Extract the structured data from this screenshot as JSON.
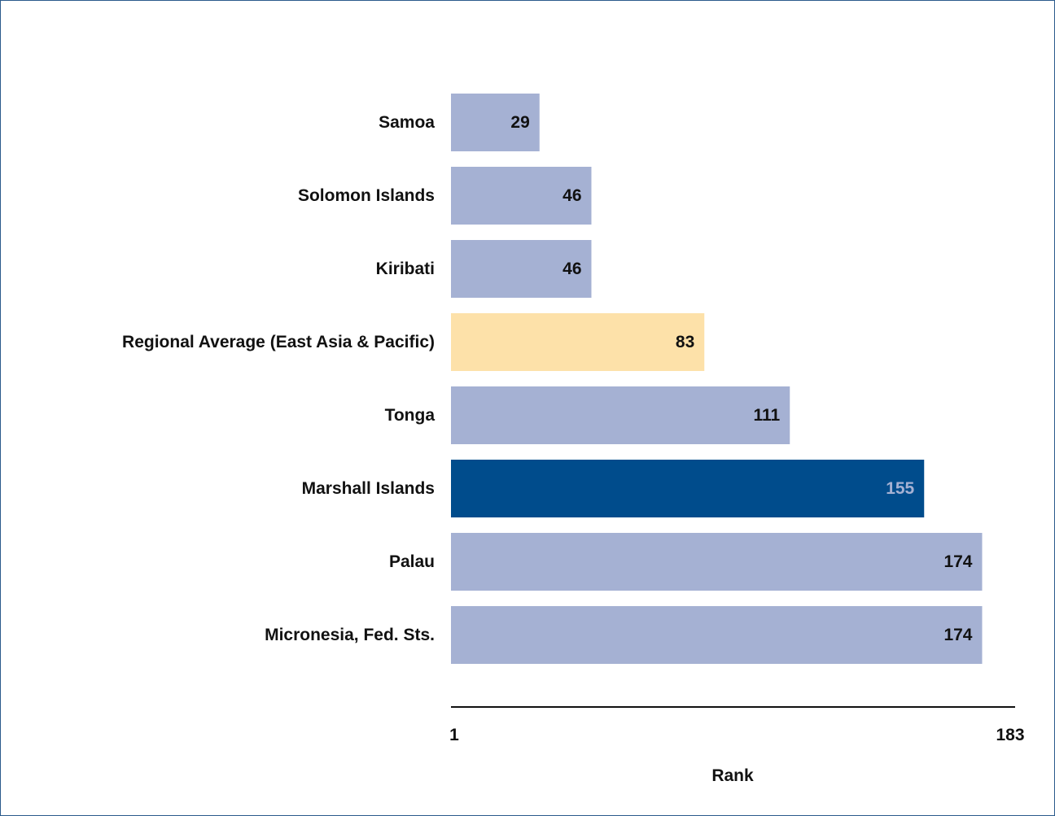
{
  "chart_data": {
    "type": "bar",
    "orientation": "horizontal",
    "categories": [
      "Samoa",
      "Solomon Islands",
      "Kiribati",
      "Regional Average (East Asia & Pacific)",
      "Tonga",
      "Marshall Islands",
      "Palau",
      "Micronesia, Fed. Sts."
    ],
    "values": [
      29,
      46,
      46,
      83,
      111,
      155,
      174,
      174
    ],
    "highlight": {
      "Regional Average (East Asia & Pacific)": "regional",
      "Marshall Islands": "focus"
    },
    "xlabel": "Rank",
    "xlim": [
      1,
      183
    ],
    "x_ticks": [
      "1",
      "183"
    ],
    "colors": {
      "default_bar": "#a5b1d3",
      "regional_bar": "#fde1a9",
      "focus_bar": "#004c8c",
      "default_label": "#111111",
      "focus_label": "#a5b1d3",
      "axis": "#111111",
      "frame": "#2b5b8c"
    },
    "grid": false,
    "legend": "none"
  }
}
